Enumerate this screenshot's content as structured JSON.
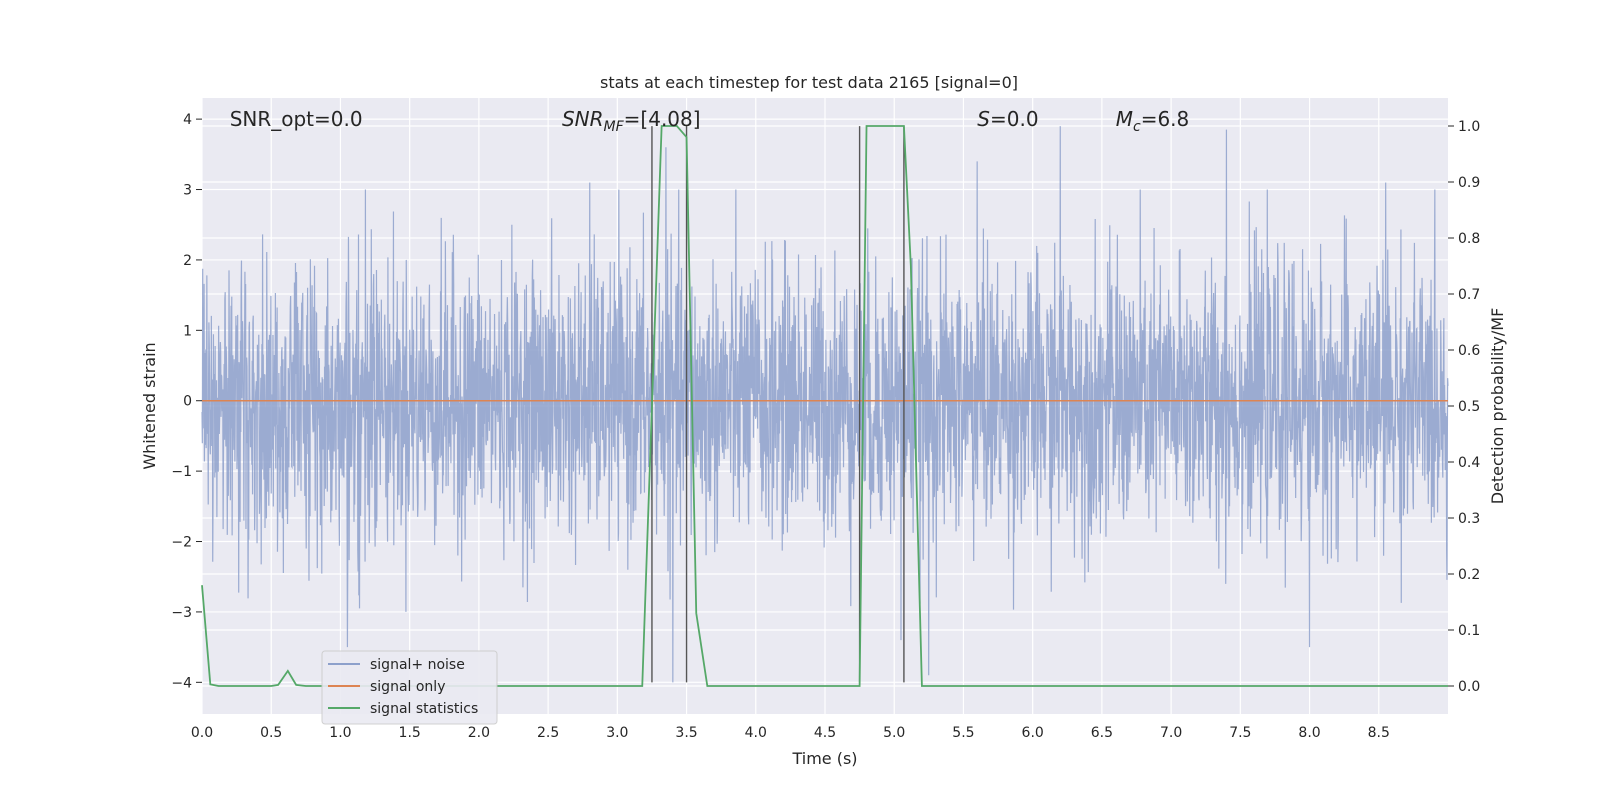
{
  "chart_data": {
    "type": "line",
    "title": "stats at each timestep for test data 2165 [signal=0]",
    "xlabel": "Time (s)",
    "ylabel_left": "Whitened strain",
    "ylabel_right": "Detection probability/MF",
    "xlim": [
      0.0,
      9.0
    ],
    "ylim_left": [
      -4.45,
      4.3
    ],
    "ylim_right": [
      -0.05,
      1.05
    ],
    "x_ticks": [
      "0.0",
      "0.5",
      "1.0",
      "1.5",
      "2.0",
      "2.5",
      "3.0",
      "3.5",
      "4.0",
      "4.5",
      "5.0",
      "5.5",
      "6.0",
      "6.5",
      "7.0",
      "7.5",
      "8.0",
      "8.5"
    ],
    "x_tick_values": [
      0.0,
      0.5,
      1.0,
      1.5,
      2.0,
      2.5,
      3.0,
      3.5,
      4.0,
      4.5,
      5.0,
      5.5,
      6.0,
      6.5,
      7.0,
      7.5,
      8.0,
      8.5
    ],
    "y_left_ticks": [
      "−4",
      "−3",
      "−2",
      "−1",
      "0",
      "1",
      "2",
      "3",
      "4"
    ],
    "y_left_tick_values": [
      -4,
      -3,
      -2,
      -1,
      0,
      1,
      2,
      3,
      4
    ],
    "y_right_ticks": [
      "0.0",
      "0.1",
      "0.2",
      "0.3",
      "0.4",
      "0.5",
      "0.6",
      "0.7",
      "0.8",
      "0.9",
      "1.0"
    ],
    "y_right_tick_values": [
      0.0,
      0.1,
      0.2,
      0.3,
      0.4,
      0.5,
      0.6,
      0.7,
      0.8,
      0.9,
      1.0
    ],
    "grid": true,
    "legend_position": "lower-left",
    "annotations": [
      {
        "text": "SNR_opt=0.0",
        "x": 0.2,
        "y": 4.0
      },
      {
        "text": "SNR_MF=[4.08]",
        "x": 2.6,
        "y": 4.0
      },
      {
        "text": "S=0.0",
        "x": 5.6,
        "y": 4.0
      },
      {
        "text": "M_c=6.8",
        "x": 6.6,
        "y": 4.0
      }
    ],
    "vertical_lines": [
      {
        "x": 3.25,
        "ymin": -4.0,
        "ymax": 3.9
      },
      {
        "x": 3.5,
        "ymin": -4.0,
        "ymax": 3.9
      },
      {
        "x": 4.75,
        "ymin": -4.0,
        "ymax": 3.9
      },
      {
        "x": 5.07,
        "ymin": -4.0,
        "ymax": 3.9
      }
    ],
    "series": [
      {
        "name": "signal+ noise",
        "color": "#8da0cb",
        "axis": "left",
        "description": "dense noise, amplitude mostly within ±1.6, peaks to about ±4",
        "notable_peaks": [
          {
            "x": 6.2,
            "y": 3.9
          },
          {
            "x": 7.4,
            "y": 3.85
          },
          {
            "x": 3.35,
            "y": 3.6
          },
          {
            "x": 5.6,
            "y": 3.4
          },
          {
            "x": 8.55,
            "y": 3.1
          },
          {
            "x": 2.8,
            "y": 3.1
          },
          {
            "x": 1.05,
            "y": -3.5
          },
          {
            "x": 8.0,
            "y": -3.5
          },
          {
            "x": 5.05,
            "y": -3.4
          },
          {
            "x": 3.4,
            "y": -4.0
          },
          {
            "x": 5.25,
            "y": -3.9
          }
        ]
      },
      {
        "name": "signal only",
        "color": "#dd8452",
        "axis": "left",
        "x": [
          0.0,
          9.0
        ],
        "y": [
          0.0,
          0.0
        ]
      },
      {
        "name": "signal statistics",
        "color": "#55a868",
        "axis": "right",
        "x": [
          0.0,
          0.06,
          0.12,
          0.5,
          0.55,
          0.62,
          0.68,
          0.75,
          3.18,
          3.25,
          3.32,
          3.43,
          3.5,
          3.57,
          3.65,
          4.75,
          4.8,
          5.07,
          5.12,
          5.2,
          9.0
        ],
        "y": [
          0.18,
          0.003,
          0.0,
          0.0,
          0.002,
          0.027,
          0.002,
          0.0,
          0.0,
          0.5,
          1.0,
          1.0,
          0.98,
          0.13,
          0.0,
          0.0,
          1.0,
          1.0,
          0.75,
          0.0,
          0.0
        ]
      }
    ]
  }
}
